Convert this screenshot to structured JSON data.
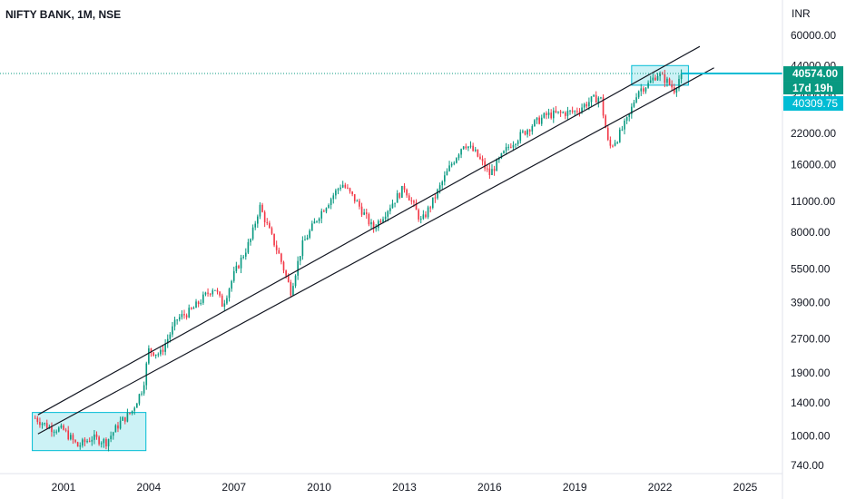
{
  "chart_data": {
    "type": "candlestick",
    "title": "NIFTY BANK, 1M, NSE",
    "currency": "INR",
    "y_scale": "log",
    "ylim": [
      680,
      86000
    ],
    "xlim": [
      1999.5,
      2026.3
    ],
    "x_tick_labels": [
      "2001",
      "2004",
      "2007",
      "2010",
      "2013",
      "2016",
      "2019",
      "2022",
      "2025"
    ],
    "y_tick_labels": [
      "60000.00",
      "44000.00",
      "32000.00",
      "22000.00",
      "16000.00",
      "11000.00",
      "8000.00",
      "5500.00",
      "3900.00",
      "2700.00",
      "1900.00",
      "1400.00",
      "1000.00",
      "740.00"
    ],
    "price_badge": {
      "label": "40574.00",
      "value": 40574,
      "color": "#089981"
    },
    "countdown_badge": {
      "label": "17d 19h",
      "color": "#089981"
    },
    "level_badge": {
      "label": "40309.75",
      "value": 40309.75,
      "color": "#00bcd4"
    },
    "up_color": "#089981",
    "down_color": "#f23645",
    "channel_lines": [
      {
        "x1": 2000.1,
        "y1": 1240,
        "x2": 2023.4,
        "y2": 53500
      },
      {
        "x1": 2000.1,
        "y1": 1020,
        "x2": 2023.9,
        "y2": 43000
      }
    ],
    "highlight_boxes": [
      {
        "x1": 1999.9,
        "x2": 2003.9,
        "y1": 1270,
        "y2": 860,
        "color": "#00bcd4"
      },
      {
        "x1": 2021.0,
        "x2": 2023.0,
        "y1": 44000,
        "y2": 36000,
        "color": "#00bcd4"
      }
    ],
    "anchors": [
      [
        2000.0,
        1200
      ],
      [
        2000.5,
        1090
      ],
      [
        2001.0,
        1060
      ],
      [
        2001.5,
        900
      ],
      [
        2002.0,
        980
      ],
      [
        2002.5,
        940
      ],
      [
        2003.0,
        1150
      ],
      [
        2003.4,
        1280
      ],
      [
        2003.8,
        1650
      ],
      [
        2004.0,
        2400
      ],
      [
        2004.4,
        2300
      ],
      [
        2005.0,
        3300
      ],
      [
        2005.5,
        3600
      ],
      [
        2006.3,
        4600
      ],
      [
        2006.6,
        3800
      ],
      [
        2007.0,
        5200
      ],
      [
        2007.6,
        7500
      ],
      [
        2007.9,
        10500
      ],
      [
        2008.3,
        7800
      ],
      [
        2008.6,
        6300
      ],
      [
        2009.0,
        4400
      ],
      [
        2009.4,
        7000
      ],
      [
        2010.0,
        9600
      ],
      [
        2010.8,
        13200
      ],
      [
        2011.3,
        11000
      ],
      [
        2011.9,
        8300
      ],
      [
        2012.5,
        10500
      ],
      [
        2013.0,
        12700
      ],
      [
        2013.6,
        8900
      ],
      [
        2014.0,
        11000
      ],
      [
        2014.6,
        15600
      ],
      [
        2015.1,
        20000
      ],
      [
        2015.5,
        18000
      ],
      [
        2016.0,
        14500
      ],
      [
        2016.7,
        19500
      ],
      [
        2017.5,
        24000
      ],
      [
        2018.0,
        26500
      ],
      [
        2018.5,
        27000
      ],
      [
        2019.0,
        27500
      ],
      [
        2019.6,
        31000
      ],
      [
        2019.9,
        32000
      ],
      [
        2020.2,
        19000
      ],
      [
        2020.5,
        21000
      ],
      [
        2020.9,
        26000
      ],
      [
        2021.2,
        34000
      ],
      [
        2021.6,
        36500
      ],
      [
        2021.9,
        40500
      ],
      [
        2022.2,
        38000
      ],
      [
        2022.5,
        34500
      ],
      [
        2022.75,
        40574
      ]
    ]
  }
}
